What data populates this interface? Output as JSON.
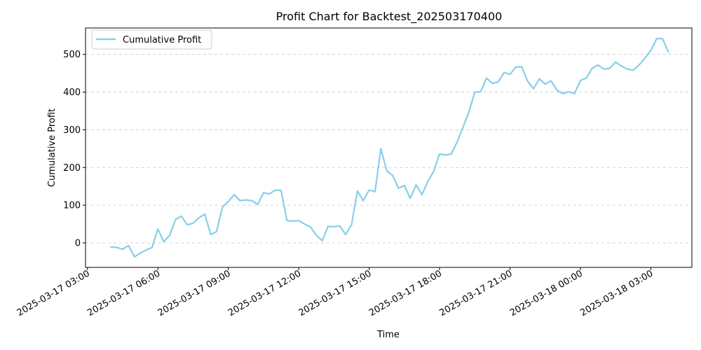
{
  "chart_data": {
    "type": "line",
    "title": "Profit Chart for Backtest_202503170400",
    "xlabel": "Time",
    "ylabel": "Cumulative Profit",
    "ylim": [
      -65,
      570
    ],
    "xlim": [
      "2025-03-17 02:55",
      "2025-03-18 04:45"
    ],
    "grid": "y-dashed",
    "legend_position": "top-left",
    "x_ticks": [
      "2025-03-17 03:00",
      "2025-03-17 06:00",
      "2025-03-17 09:00",
      "2025-03-17 12:00",
      "2025-03-17 15:00",
      "2025-03-17 18:00",
      "2025-03-17 21:00",
      "2025-03-18 00:00",
      "2025-03-18 03:00"
    ],
    "y_ticks": [
      0,
      100,
      200,
      300,
      400,
      500
    ],
    "series": [
      {
        "name": "Cumulative Profit",
        "color": "#87ceeb",
        "x": [
          "2025-03-17 04:00",
          "2025-03-17 04:15",
          "2025-03-17 04:30",
          "2025-03-17 04:45",
          "2025-03-17 05:00",
          "2025-03-17 05:15",
          "2025-03-17 05:30",
          "2025-03-17 05:45",
          "2025-03-17 06:00",
          "2025-03-17 06:15",
          "2025-03-17 06:30",
          "2025-03-17 06:45",
          "2025-03-17 07:00",
          "2025-03-17 07:15",
          "2025-03-17 07:30",
          "2025-03-17 07:45",
          "2025-03-17 08:00",
          "2025-03-17 08:15",
          "2025-03-17 08:30",
          "2025-03-17 08:45",
          "2025-03-17 09:00",
          "2025-03-17 09:15",
          "2025-03-17 09:30",
          "2025-03-17 09:45",
          "2025-03-17 10:00",
          "2025-03-17 10:15",
          "2025-03-17 10:30",
          "2025-03-17 10:45",
          "2025-03-17 11:00",
          "2025-03-17 11:15",
          "2025-03-17 11:30",
          "2025-03-17 11:45",
          "2025-03-17 12:00",
          "2025-03-17 12:15",
          "2025-03-17 12:30",
          "2025-03-17 12:45",
          "2025-03-17 13:00",
          "2025-03-17 13:15",
          "2025-03-17 13:30",
          "2025-03-17 13:45",
          "2025-03-17 14:00",
          "2025-03-17 14:15",
          "2025-03-17 14:30",
          "2025-03-17 14:45",
          "2025-03-17 15:00",
          "2025-03-17 15:15",
          "2025-03-17 15:30",
          "2025-03-17 15:45",
          "2025-03-17 16:00",
          "2025-03-17 16:15",
          "2025-03-17 16:30",
          "2025-03-17 16:45",
          "2025-03-17 17:00",
          "2025-03-17 17:15",
          "2025-03-17 17:30",
          "2025-03-17 17:45",
          "2025-03-17 18:00",
          "2025-03-17 18:15",
          "2025-03-17 18:30",
          "2025-03-17 18:45",
          "2025-03-17 19:00",
          "2025-03-17 19:15",
          "2025-03-17 19:30",
          "2025-03-17 19:45",
          "2025-03-17 20:00",
          "2025-03-17 20:15",
          "2025-03-17 20:30",
          "2025-03-17 20:45",
          "2025-03-17 21:00",
          "2025-03-17 21:15",
          "2025-03-17 21:30",
          "2025-03-17 21:45",
          "2025-03-17 22:00",
          "2025-03-17 22:15",
          "2025-03-17 22:30",
          "2025-03-17 22:45",
          "2025-03-17 23:00",
          "2025-03-17 23:15",
          "2025-03-17 23:30",
          "2025-03-17 23:45",
          "2025-03-18 00:00",
          "2025-03-18 00:15",
          "2025-03-18 00:30",
          "2025-03-18 00:45",
          "2025-03-18 01:00",
          "2025-03-18 01:15",
          "2025-03-18 01:30",
          "2025-03-18 01:45",
          "2025-03-18 02:00",
          "2025-03-18 02:15",
          "2025-03-18 02:30",
          "2025-03-18 02:45",
          "2025-03-18 03:00",
          "2025-03-18 03:15",
          "2025-03-18 03:30",
          "2025-03-18 03:45"
        ],
        "y": [
          -11,
          -12,
          -17,
          -7,
          -37,
          -27,
          -19,
          -12,
          37,
          3,
          20,
          62,
          71,
          48,
          52,
          67,
          76,
          22,
          30,
          95,
          110,
          128,
          112,
          114,
          112,
          102,
          133,
          130,
          140,
          139,
          59,
          58,
          59,
          50,
          42,
          20,
          6,
          44,
          43,
          45,
          22,
          48,
          138,
          112,
          140,
          136,
          250,
          191,
          179,
          145,
          152,
          118,
          154,
          128,
          163,
          190,
          236,
          233,
          236,
          268,
          307,
          347,
          400,
          401,
          437,
          423,
          427,
          452,
          447,
          467,
          467,
          429,
          409,
          435,
          421,
          430,
          405,
          396,
          401,
          396,
          431,
          437,
          463,
          472,
          461,
          463,
          480,
          469,
          461,
          458,
          472,
          490,
          510,
          542,
          542,
          506
        ]
      }
    ]
  }
}
